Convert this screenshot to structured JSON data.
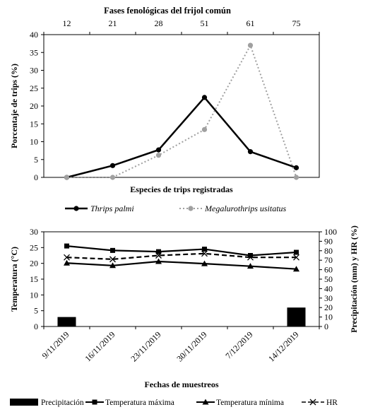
{
  "chart_data": [
    {
      "type": "line",
      "title": "Fases fenológicas del frijol común",
      "categories": [
        "12",
        "21",
        "28",
        "51",
        "61",
        "75"
      ],
      "xlabel": "Especies de trips registradas",
      "ylabel": "Porcentaje de trips (%)",
      "ylim": [
        0,
        40
      ],
      "yticks": [
        0,
        5,
        10,
        15,
        20,
        25,
        30,
        35,
        40
      ],
      "legend_position": "bottom",
      "series": [
        {
          "name": "Thrips palmi",
          "values": [
            0,
            3.3,
            7.7,
            22.4,
            7.2,
            2.7
          ],
          "color": "#000000",
          "style": "solid"
        },
        {
          "name": "Megalurothrips usitatus",
          "values": [
            0,
            0,
            6.2,
            13.4,
            37.0,
            0
          ],
          "color": "#a0a0a0",
          "style": "dotted"
        }
      ]
    },
    {
      "type": "line",
      "categories": [
        "9/11/2019",
        "16/11/2019",
        "23/11/2019",
        "30/11/2019",
        "7/12/2019",
        "14/12/2019"
      ],
      "xlabel": "Fechas de muestreos",
      "ylabel": "Temperatura (°C)",
      "y2label": "Precipitación (mm) y HR (%)",
      "ylim": [
        0,
        30
      ],
      "yticks": [
        0,
        5,
        10,
        15,
        20,
        25,
        30
      ],
      "y2lim": [
        0,
        100
      ],
      "y2ticks": [
        0,
        10,
        20,
        30,
        40,
        50,
        60,
        70,
        80,
        90,
        100
      ],
      "legend_position": "bottom",
      "series": [
        {
          "name": "Precipitación",
          "axis": "right",
          "kind": "bar",
          "values": [
            10,
            0,
            0,
            0,
            0,
            20
          ],
          "color": "#000000"
        },
        {
          "name": "Temperatura máxima",
          "axis": "left",
          "kind": "line",
          "marker": "square",
          "values": [
            25.5,
            24.1,
            23.7,
            24.5,
            22.5,
            23.5
          ],
          "color": "#000000"
        },
        {
          "name": "Temperatura mínima",
          "axis": "left",
          "kind": "line",
          "marker": "triangle",
          "values": [
            20.1,
            19.3,
            20.6,
            19.9,
            19.1,
            18.2
          ],
          "color": "#000000"
        },
        {
          "name": "HR",
          "axis": "right",
          "kind": "line",
          "marker": "x",
          "dash": true,
          "values": [
            73,
            71,
            75,
            77,
            73,
            73
          ],
          "color": "#000000"
        }
      ]
    }
  ]
}
